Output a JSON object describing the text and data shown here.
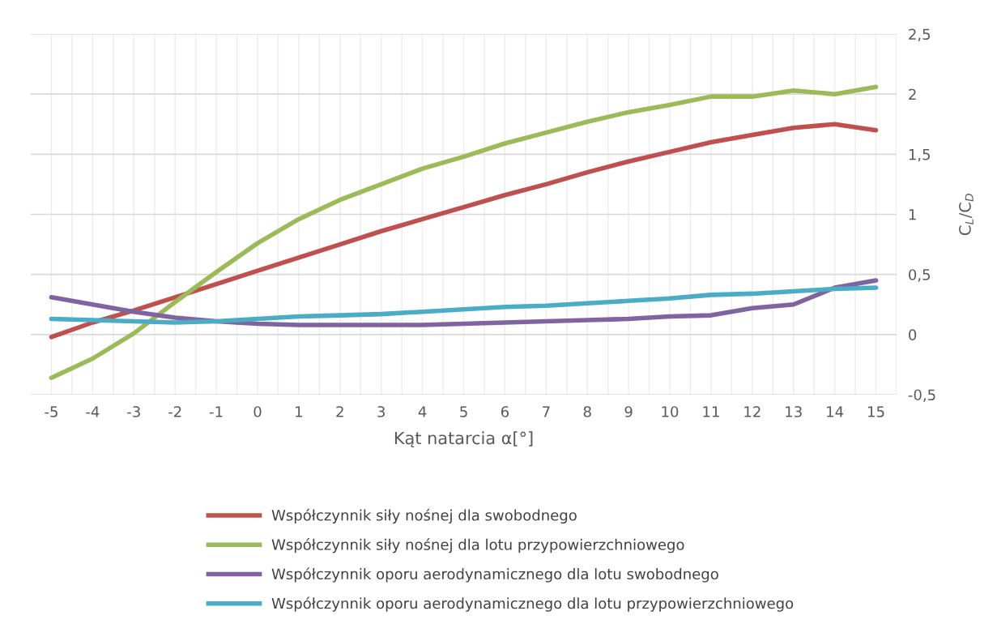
{
  "chart_data": {
    "type": "line",
    "xlabel": "Kąt natarcia α[°]",
    "ylabel": "C$_{L}$/C$_{D}$",
    "categories": [
      "-5",
      "-4",
      "-3",
      "-2",
      "-1",
      "0",
      "1",
      "2",
      "3",
      "4",
      "5",
      "6",
      "7",
      "8",
      "9",
      "10",
      "11",
      "12",
      "13",
      "14",
      "15"
    ],
    "series": [
      {
        "name": "Współczynnik siły nośnej dla swobodnego",
        "color": "#c0504d",
        "values": [
          -0.02,
          0.1,
          0.2,
          0.31,
          0.42,
          0.53,
          0.64,
          0.75,
          0.86,
          0.96,
          1.06,
          1.16,
          1.25,
          1.35,
          1.44,
          1.52,
          1.6,
          1.66,
          1.72,
          1.75,
          1.7
        ]
      },
      {
        "name": "Współczynnik siły nośnej dla lotu przypowierzchniowego",
        "color": "#9bbb59",
        "values": [
          -0.36,
          -0.2,
          0.01,
          0.27,
          0.52,
          0.76,
          0.96,
          1.12,
          1.25,
          1.38,
          1.48,
          1.59,
          1.68,
          1.77,
          1.85,
          1.91,
          1.98,
          1.98,
          2.03,
          2.0,
          2.06
        ]
      },
      {
        "name": "Współczynnik oporu aerodynamicznego dla lotu swobodnego",
        "color": "#8064a2",
        "values": [
          0.31,
          0.25,
          0.19,
          0.14,
          0.11,
          0.09,
          0.08,
          0.08,
          0.08,
          0.08,
          0.09,
          0.1,
          0.11,
          0.12,
          0.13,
          0.15,
          0.16,
          0.22,
          0.25,
          0.39,
          0.45
        ]
      },
      {
        "name": "Współczynnik oporu aerodynamicznego dla lotu przypowierzchniowego",
        "color": "#4bacc6",
        "values": [
          0.13,
          0.12,
          0.11,
          0.1,
          0.11,
          0.13,
          0.15,
          0.16,
          0.17,
          0.19,
          0.21,
          0.23,
          0.24,
          0.26,
          0.28,
          0.3,
          0.33,
          0.34,
          0.36,
          0.38,
          0.39
        ]
      }
    ],
    "ylim": [
      -0.5,
      2.5
    ],
    "yticks": [
      {
        "value": -0.5,
        "label": "-0,5"
      },
      0,
      {
        "value": 0.5,
        "label": "0,5"
      },
      1,
      {
        "value": 1.5,
        "label": "1,5"
      },
      2,
      {
        "value": 2.5,
        "label": "2,5"
      }
    ],
    "grid": true,
    "legend": "bottom",
    "marker": "none",
    "line_style": "solid"
  }
}
